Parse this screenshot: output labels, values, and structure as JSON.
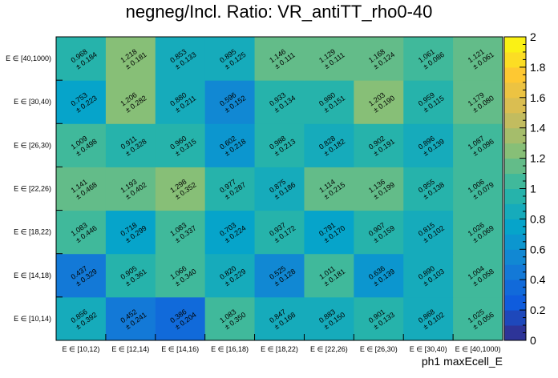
{
  "chart_data": {
    "type": "heatmap",
    "title": "negneg/Incl. Ratio: VR_antiTT_rho0-40",
    "xlabel": "ph1 maxEcell_E",
    "ylabel": "",
    "x_categories": [
      "E ∈ [10,12)",
      "E ∈ [12,14)",
      "E ∈ [14,16)",
      "E ∈ [16,18)",
      "E ∈ [18,22)",
      "E ∈ [22,26)",
      "E ∈ [26,30)",
      "E ∈ [30,40)",
      "E ∈ [40,1000)"
    ],
    "y_categories": [
      "E ∈ [10,14)",
      "E ∈ [14,18)",
      "E ∈ [18,22)",
      "E ∈ [22,26)",
      "E ∈ [26,30)",
      "E ∈ [30,40)",
      "E ∈ [40,1000)"
    ],
    "zlim": [
      0,
      2
    ],
    "colorbar_ticks": [
      "0",
      "0.2",
      "0.4",
      "0.6",
      "0.8",
      "1",
      "1.2",
      "1.4",
      "1.6",
      "1.8",
      "2"
    ],
    "values": [
      [
        0.856,
        0.452,
        0.386,
        1.083,
        0.847,
        0.883,
        0.901,
        0.868,
        1.025
      ],
      [
        0.437,
        0.905,
        1.066,
        0.82,
        0.525,
        1.011,
        0.636,
        0.89,
        1.004
      ],
      [
        1.083,
        0.718,
        1.083,
        0.703,
        0.937,
        0.791,
        0.907,
        0.815,
        1.026
      ],
      [
        1.141,
        1.193,
        1.298,
        0.977,
        0.875,
        1.114,
        1.136,
        0.955,
        1.006
      ],
      [
        1.009,
        0.911,
        0.96,
        0.602,
        0.988,
        0.828,
        0.902,
        0.896,
        1.087
      ],
      [
        0.753,
        1.206,
        0.88,
        0.596,
        0.933,
        0.98,
        1.203,
        0.959,
        1.179
      ],
      [
        0.968,
        1.218,
        0.853,
        0.895,
        1.146,
        1.129,
        1.168,
        1.061,
        1.121
      ]
    ],
    "errors": [
      [
        0.392,
        0.241,
        0.204,
        0.35,
        0.168,
        0.15,
        0.133,
        0.102,
        0.056
      ],
      [
        0.329,
        0.361,
        0.34,
        0.229,
        0.128,
        0.181,
        0.139,
        0.103,
        0.058
      ],
      [
        0.446,
        0.299,
        0.337,
        0.224,
        0.172,
        0.17,
        0.159,
        0.102,
        0.069
      ],
      [
        0.468,
        0.402,
        0.352,
        0.287,
        0.186,
        0.215,
        0.199,
        0.138,
        0.079
      ],
      [
        0.498,
        0.328,
        0.315,
        0.218,
        0.213,
        0.182,
        0.191,
        0.139,
        0.096
      ],
      [
        0.223,
        0.282,
        0.211,
        0.152,
        0.134,
        0.151,
        0.19,
        0.115,
        0.08
      ],
      [
        0.184,
        0.181,
        0.133,
        0.125,
        0.111,
        0.111,
        0.124,
        0.086,
        0.061
      ]
    ],
    "grid": false,
    "legend": "colorbar-right"
  }
}
